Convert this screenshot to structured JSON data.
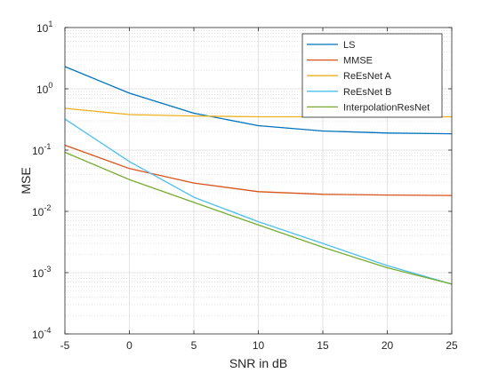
{
  "chart_data": {
    "type": "line",
    "title": "",
    "xlabel": "SNR in dB",
    "ylabel": "MSE",
    "x": [
      -5,
      0,
      5,
      10,
      15,
      20,
      25
    ],
    "xlim": [
      -5,
      25
    ],
    "ylim": [
      0.0001,
      10
    ],
    "yscale": "log",
    "grid": true,
    "minor_grid": true,
    "legend_position": "top-right",
    "x_ticks": [
      "-5",
      "0",
      "5",
      "10",
      "15",
      "20",
      "25"
    ],
    "y_ticks": [
      {
        "base": "10",
        "exp": "-4"
      },
      {
        "base": "10",
        "exp": "-3"
      },
      {
        "base": "10",
        "exp": "-2"
      },
      {
        "base": "10",
        "exp": "-1"
      },
      {
        "base": "10",
        "exp": "0"
      },
      {
        "base": "10",
        "exp": "1"
      }
    ],
    "series": [
      {
        "name": "LS",
        "color": "#0072BD",
        "values": [
          2.3,
          0.85,
          0.4,
          0.25,
          0.205,
          0.19,
          0.185
        ]
      },
      {
        "name": "MMSE",
        "color": "#D95319",
        "values": [
          0.12,
          0.05,
          0.029,
          0.021,
          0.019,
          0.0185,
          0.0182
        ]
      },
      {
        "name": "ReEsNet A",
        "color": "#EDB120",
        "values": [
          0.48,
          0.38,
          0.36,
          0.35,
          0.35,
          0.35,
          0.35
        ]
      },
      {
        "name": "ReEsNet B",
        "color": "#4DBEEE",
        "values": [
          0.32,
          0.065,
          0.017,
          0.0068,
          0.003,
          0.0013,
          0.00065
        ]
      },
      {
        "name": "InterpolationResNet",
        "color": "#77AC30",
        "values": [
          0.092,
          0.033,
          0.014,
          0.006,
          0.0026,
          0.0012,
          0.00065
        ]
      }
    ]
  }
}
